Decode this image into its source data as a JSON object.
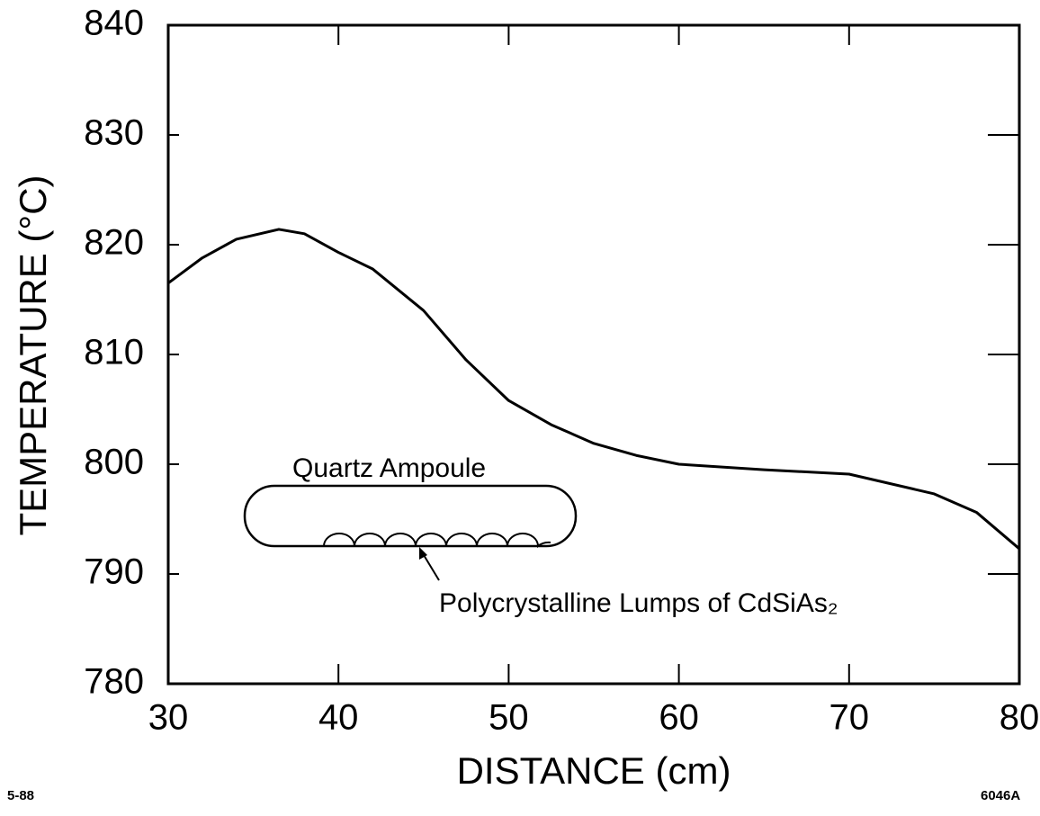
{
  "chart_data": {
    "type": "line",
    "x_label": "DISTANCE (cm)",
    "y_label": "TEMPERATURE (°C)",
    "x": [
      30,
      32,
      34,
      36.5,
      38,
      40,
      42,
      45,
      47.5,
      50,
      52.5,
      55,
      57.5,
      60,
      65,
      70,
      75,
      77.5,
      80
    ],
    "series": [
      {
        "color": "#000000",
        "values": [
          816.5,
          818.8,
          820.5,
          821.4,
          821,
          819.3,
          817.8,
          814,
          809.5,
          805.8,
          803.6,
          801.9,
          800.8,
          800,
          799.5,
          799.1,
          797.3,
          795.6,
          792.3
        ]
      }
    ],
    "xlim": [
      30,
      80
    ],
    "xticks": [
      30,
      40,
      50,
      60,
      70,
      80
    ],
    "ylim": [
      780,
      840
    ],
    "yticks": [
      780,
      790,
      800,
      810,
      820,
      830,
      840
    ],
    "annotations": [
      "Quartz Ampoule",
      "Polycrystalline Lumps of CdSiAs₂"
    ],
    "footer_left": "5-88",
    "footer_right": "6046A"
  }
}
